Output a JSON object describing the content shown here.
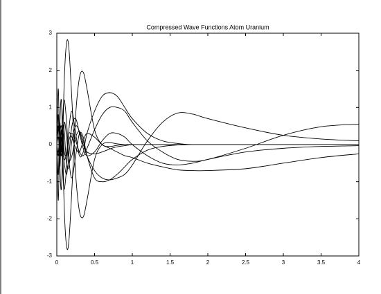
{
  "chart_data": {
    "type": "line",
    "title": "Compressed Wave Functions Atom Uranium",
    "x": [
      0,
      0.02,
      0.04,
      0.06,
      0.08,
      0.1,
      0.13,
      0.16,
      0.2,
      0.25,
      0.3,
      0.35,
      0.4,
      0.5,
      0.6,
      0.7,
      0.8,
      0.9,
      1,
      1.2,
      1.4,
      1.6,
      1.8,
      2,
      2.5,
      3,
      3.5,
      4
    ],
    "series": [
      {
        "color": "#000000",
        "values": [
          0,
          1.5,
          -0.5,
          -1.2,
          0.2,
          1.8,
          2.75,
          2.6,
          1.2,
          -0.8,
          -1.8,
          -1.95,
          -1.5,
          -0.4,
          0,
          0.05,
          0.02,
          0,
          0,
          0,
          0,
          0,
          0,
          0,
          0,
          0,
          0,
          0
        ]
      },
      {
        "color": "#000000",
        "values": [
          0,
          -1.5,
          0.5,
          1.2,
          -0.2,
          -1.8,
          -2.75,
          -2.6,
          -1.2,
          0.8,
          1.8,
          1.95,
          1.5,
          0.4,
          0,
          -0.05,
          -0.02,
          0,
          0,
          0,
          0,
          0,
          0,
          0,
          0,
          0,
          0,
          0
        ]
      },
      {
        "color": "#000000",
        "values": [
          0,
          0.8,
          -0.6,
          0.2,
          -0.8,
          -1.2,
          -0.6,
          0.4,
          0.9,
          0.3,
          -0.3,
          -0.2,
          0.3,
          0.9,
          1.3,
          1.4,
          1.3,
          1.0,
          0.7,
          0.3,
          0.1,
          0.03,
          0,
          0,
          0,
          0,
          0,
          0
        ]
      },
      {
        "color": "#000000",
        "values": [
          0,
          -0.8,
          0.6,
          -0.2,
          0.8,
          1.2,
          0.6,
          -0.4,
          -0.9,
          -0.3,
          0.3,
          0.2,
          -0.3,
          -0.9,
          -1.0,
          -0.95,
          -0.8,
          -0.6,
          -0.4,
          -0.15,
          -0.05,
          -0.01,
          0,
          0,
          0,
          0,
          0,
          0
        ]
      },
      {
        "color": "#000000",
        "values": [
          0,
          0.5,
          -0.3,
          0.4,
          -0.2,
          0.6,
          0.2,
          -0.4,
          -0.3,
          0.2,
          0.35,
          0.1,
          -0.3,
          -0.7,
          -0.9,
          -0.95,
          -0.9,
          -0.8,
          -0.55,
          0.1,
          0.6,
          0.85,
          0.82,
          0.7,
          0.45,
          0.25,
          0.15,
          0.1
        ]
      },
      {
        "color": "#000000",
        "values": [
          0,
          -0.3,
          0.2,
          -0.1,
          0.3,
          -0.2,
          -0.3,
          0.1,
          0.3,
          0.1,
          -0.2,
          -0.3,
          -0.1,
          0.4,
          0.8,
          1.0,
          1.0,
          0.9,
          0.6,
          0.1,
          -0.2,
          -0.4,
          -0.45,
          -0.4,
          -0.1,
          0.25,
          0.48,
          0.55
        ]
      },
      {
        "color": "#000000",
        "values": [
          0,
          0.2,
          -0.2,
          0.3,
          0.1,
          -0.4,
          -0.2,
          0.3,
          0.2,
          -0.1,
          -0.2,
          0.1,
          0.3,
          0.2,
          0,
          -0.1,
          -0.2,
          -0.3,
          -0.35,
          -0.5,
          -0.6,
          -0.68,
          -0.7,
          -0.7,
          -0.65,
          -0.5,
          -0.35,
          -0.25
        ]
      },
      {
        "color": "#000000",
        "values": [
          0,
          0.4,
          0.1,
          -0.3,
          0.5,
          0.3,
          -0.5,
          -0.6,
          0.1,
          0.5,
          0.35,
          0,
          -0.2,
          -0.25,
          -0.2,
          -0.12,
          -0.06,
          -0.03,
          0,
          0,
          0,
          0,
          0,
          0,
          0,
          0,
          0,
          0
        ]
      },
      {
        "color": "#000000",
        "values": [
          0,
          -0.2,
          0.3,
          0.5,
          0,
          -0.5,
          -0.8,
          -0.3,
          0.5,
          0.7,
          0.3,
          -0.1,
          -0.3,
          -0.2,
          0.1,
          0.3,
          0.3,
          0.2,
          0,
          -0.3,
          -0.5,
          -0.55,
          -0.5,
          -0.4,
          -0.2,
          -0.1,
          -0.05,
          -0.03
        ]
      }
    ],
    "xlim": [
      0,
      4
    ],
    "xticks": [
      0,
      0.5,
      1,
      1.5,
      2,
      2.5,
      3,
      3.5,
      4
    ],
    "ylim": [
      -3,
      3
    ],
    "yticks": [
      -3,
      -2,
      -1,
      0,
      1,
      2,
      3
    ]
  }
}
